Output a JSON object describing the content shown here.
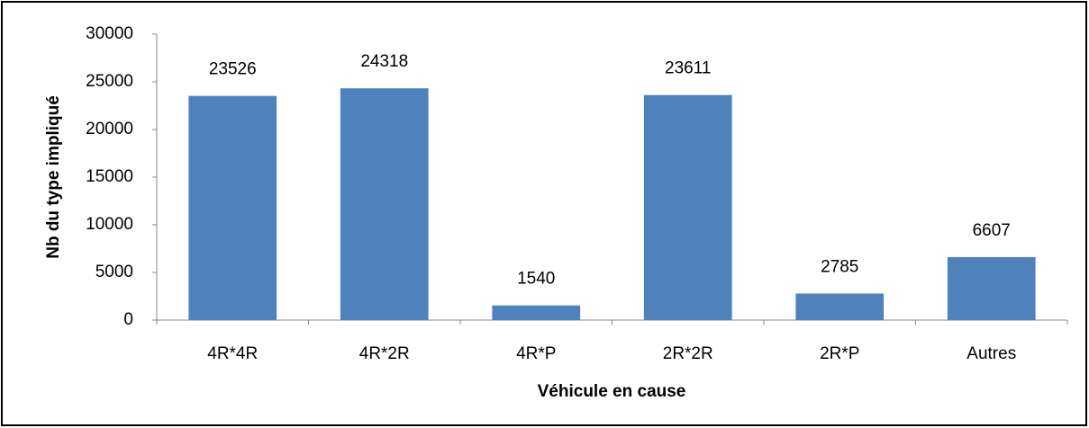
{
  "chart_data": {
    "type": "bar",
    "x_label": "Véhicule en cause",
    "y_label": "Nb du type impliqué",
    "categories": [
      "4R*4R",
      "4R*2R",
      "4R*P",
      "2R*2R",
      "2R*P",
      "Autres"
    ],
    "values": [
      23526,
      24318,
      1540,
      23611,
      2785,
      6607
    ],
    "color": "#4f81bd",
    "ylim": [
      0,
      30000
    ],
    "yticks": [
      0,
      5000,
      10000,
      15000,
      20000,
      25000,
      30000
    ],
    "grid": false
  }
}
